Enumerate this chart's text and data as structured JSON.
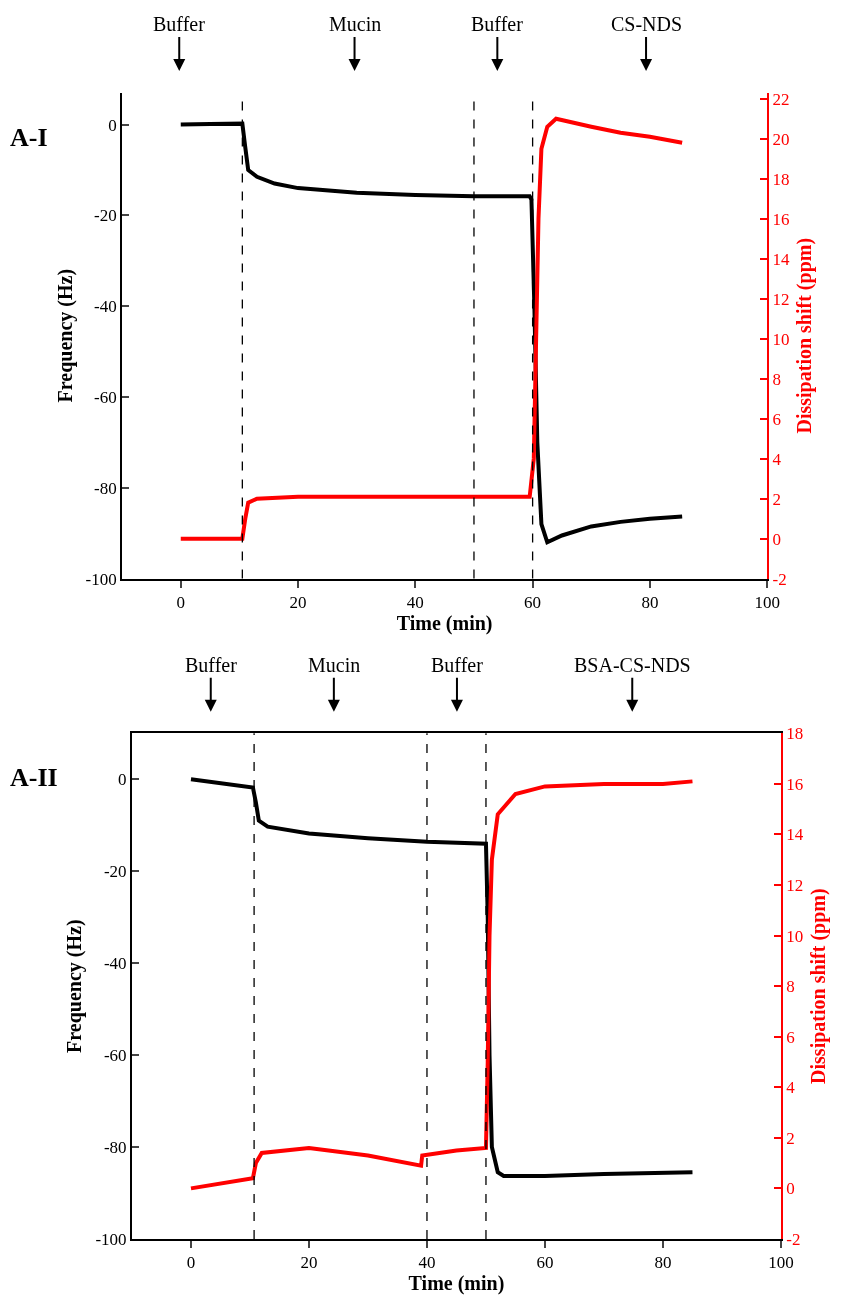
{
  "chart_data": [
    {
      "type": "line",
      "title": "A-I",
      "xlabel": "Time (min)",
      "ylabel": "Frequency (Hz)",
      "y2label": "Dissipation shift (ppm)",
      "xlim": [
        -10,
        100
      ],
      "xticks": [
        0,
        20,
        40,
        60,
        80,
        100
      ],
      "ylim": [
        -100,
        7
      ],
      "yticks": [
        -100,
        -80,
        -60,
        -40,
        -20,
        0
      ],
      "y2lim": [
        -2,
        22.3
      ],
      "y2ticks": [
        -2,
        0,
        2,
        4,
        6,
        8,
        10,
        12,
        14,
        16,
        18,
        20,
        22
      ],
      "series": [
        {
          "color": "#000000",
          "x": [
            0,
            5,
            10.5,
            11,
            11.5,
            13,
            16,
            20,
            30,
            40,
            50,
            59.5,
            59.8,
            60.3,
            60.8,
            61.5,
            62.5,
            65,
            70,
            75,
            80,
            85.5
          ],
          "values": [
            0,
            0.1,
            0.2,
            -5,
            -10,
            -11.5,
            -13,
            -14,
            -15,
            -15.5,
            -15.8,
            -15.8,
            -16.5,
            -40,
            -70,
            -88,
            -92,
            -90.5,
            -88.5,
            -87.5,
            -86.8,
            -86.3
          ]
        },
        {
          "color": "#ff0000",
          "axis": "y2",
          "x": [
            0,
            10.5,
            11,
            11.5,
            13,
            20,
            40,
            59.5,
            60.2,
            60.6,
            61,
            61.5,
            62.5,
            64,
            70,
            75,
            80,
            85.5
          ],
          "values": [
            0,
            0,
            1,
            1.8,
            2,
            2.1,
            2.1,
            2.1,
            4,
            10,
            16,
            19.5,
            20.6,
            21,
            20.6,
            20.3,
            20.1,
            19.8
          ]
        }
      ],
      "ref_lines": [
        {
          "axis": "x",
          "value": 10.5,
          "color": "#000000",
          "line_style": "dashed"
        },
        {
          "axis": "x",
          "value": 50,
          "color": "#000000",
          "line_style": "dashed"
        },
        {
          "axis": "x",
          "value": 60,
          "color": "#000000",
          "line_style": "dashed"
        }
      ],
      "annotations": [
        "Buffer",
        "Mucin",
        "Buffer",
        "CS-NDS"
      ]
    },
    {
      "type": "line",
      "title": "A-II",
      "xlabel": "Time (min)",
      "ylabel": "Frequency (Hz)",
      "y2label": "Dissipation shift (ppm)",
      "xlim": [
        -10,
        100
      ],
      "xticks": [
        0,
        20,
        40,
        60,
        80,
        100
      ],
      "ylim": [
        -100,
        10
      ],
      "yticks": [
        -100,
        -80,
        -60,
        -40,
        -20,
        0
      ],
      "y2lim": [
        -2,
        18
      ],
      "y2ticks": [
        -2,
        0,
        2,
        4,
        6,
        8,
        10,
        12,
        14,
        16,
        18
      ],
      "series": [
        {
          "color": "#000000",
          "x": [
            0,
            10.5,
            11,
            11.5,
            13,
            20,
            30,
            40,
            50,
            50.3,
            50.6,
            51,
            52,
            53,
            60,
            70,
            85
          ],
          "values": [
            0,
            -1.8,
            -5,
            -9,
            -10.3,
            -11.8,
            -12.8,
            -13.6,
            -14,
            -30,
            -60,
            -80,
            -85.5,
            -86.3,
            -86.3,
            -85.9,
            -85.5
          ]
        },
        {
          "color": "#ff0000",
          "axis": "y2",
          "x": [
            0,
            10.5,
            11,
            12,
            20,
            30,
            39,
            39.2,
            45,
            50,
            50.3,
            50.6,
            51,
            52,
            55,
            60,
            70,
            80,
            85
          ],
          "values": [
            0,
            0.4,
            1,
            1.4,
            1.6,
            1.3,
            0.9,
            1.3,
            1.5,
            1.6,
            5,
            10,
            13,
            14.8,
            15.6,
            15.9,
            16,
            16,
            16.1
          ]
        }
      ],
      "ref_lines": [
        {
          "axis": "x",
          "value": 10.7,
          "color": "#000000",
          "line_style": "dashed"
        },
        {
          "axis": "x",
          "value": 40,
          "color": "#000000",
          "line_style": "dashed"
        },
        {
          "axis": "x",
          "value": 50,
          "color": "#000000",
          "line_style": "dashed"
        }
      ],
      "annotations": [
        "Buffer",
        "Mucin",
        "Buffer",
        "BSA-CS-NDS"
      ]
    }
  ]
}
